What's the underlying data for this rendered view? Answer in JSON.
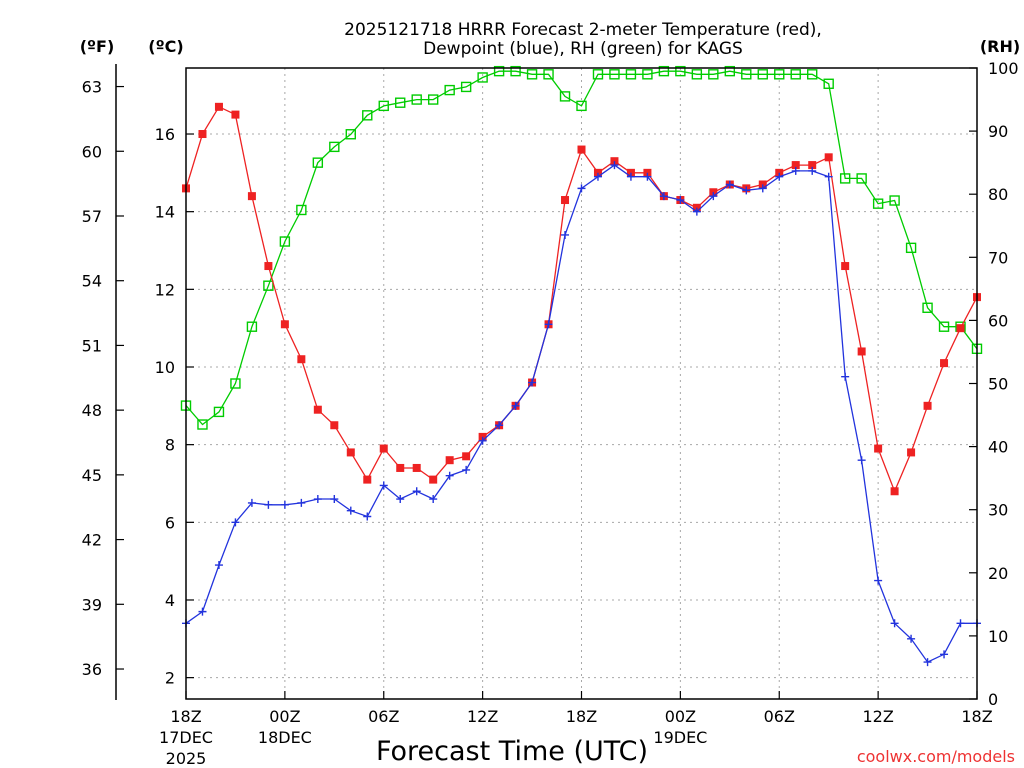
{
  "chart_data": {
    "type": "line",
    "title_line1": "2025121718 HRRR Forecast 2-meter Temperature (red),",
    "title_line2": "Dewpoint (blue), RH (green) for KAGS",
    "xlabel": "Forecast Time (UTC)",
    "credit": "coolwx.com/models",
    "unit_labels": {
      "fahrenheit": "(ºF)",
      "celsius": "(ºC)",
      "rh": "(RH)"
    },
    "colors": {
      "temperature": "#ee2222",
      "dewpoint": "#2233dd",
      "rh": "#00cc00",
      "grid": "#a8a8a8"
    },
    "x": {
      "range": [
        0,
        48
      ],
      "grid_hours": [
        6,
        12,
        18,
        24,
        30,
        36,
        42
      ]
    },
    "x_ticks": [
      {
        "hour": 0,
        "line1": "18Z",
        "line2": "17DEC",
        "line3": "2025"
      },
      {
        "hour": 6,
        "line1": "00Z",
        "line2": "18DEC",
        "line3": ""
      },
      {
        "hour": 12,
        "line1": "06Z",
        "line2": "",
        "line3": ""
      },
      {
        "hour": 18,
        "line1": "12Z",
        "line2": "",
        "line3": ""
      },
      {
        "hour": 24,
        "line1": "18Z",
        "line2": "",
        "line3": ""
      },
      {
        "hour": 30,
        "line1": "00Z",
        "line2": "19DEC",
        "line3": ""
      },
      {
        "hour": 36,
        "line1": "06Z",
        "line2": "",
        "line3": ""
      },
      {
        "hour": 42,
        "line1": "12Z",
        "line2": "",
        "line3": ""
      },
      {
        "hour": 48,
        "line1": "18Z",
        "line2": "",
        "line3": ""
      }
    ],
    "celsius_axis": {
      "range": [
        1.45,
        17.7
      ],
      "ticks": [
        "2",
        "4",
        "6",
        "8",
        "10",
        "12",
        "14",
        "16"
      ]
    },
    "fahrenheit_axis": {
      "ticks": [
        "36",
        "39",
        "42",
        "45",
        "48",
        "51",
        "54",
        "57",
        "60",
        "63"
      ]
    },
    "rh_axis": {
      "range": [
        0,
        100
      ],
      "ticks": [
        "0",
        "10",
        "20",
        "30",
        "40",
        "50",
        "60",
        "70",
        "80",
        "90",
        "100"
      ]
    },
    "series": [
      {
        "name": "Temperature",
        "units": "C",
        "values": [
          14.6,
          16.0,
          16.7,
          16.5,
          14.4,
          12.6,
          11.1,
          10.2,
          8.9,
          8.5,
          7.8,
          7.1,
          7.9,
          7.4,
          7.4,
          7.1,
          7.6,
          7.7,
          8.2,
          8.5,
          9.0,
          9.6,
          11.1,
          14.3,
          15.6,
          15.0,
          15.3,
          15.0,
          15.0,
          14.4,
          14.3,
          14.1,
          14.5,
          14.7,
          14.6,
          14.7,
          15.0,
          15.2,
          15.2,
          15.4,
          12.6,
          10.4,
          7.9,
          6.8,
          7.8,
          9.0,
          10.1,
          11.0,
          11.8
        ]
      },
      {
        "name": "Dewpoint",
        "units": "C",
        "values": [
          3.4,
          3.7,
          4.9,
          6.0,
          6.5,
          6.45,
          6.45,
          6.5,
          6.6,
          6.6,
          6.3,
          6.15,
          6.95,
          6.6,
          6.8,
          6.6,
          7.2,
          7.35,
          8.1,
          8.5,
          9.0,
          9.6,
          11.1,
          13.4,
          14.6,
          14.9,
          15.2,
          14.9,
          14.9,
          14.4,
          14.3,
          14.0,
          14.4,
          14.7,
          14.55,
          14.6,
          14.9,
          15.05,
          15.05,
          14.9,
          9.75,
          7.6,
          4.5,
          3.4,
          3.0,
          2.4,
          2.6,
          3.4,
          3.4
        ]
      },
      {
        "name": "RH",
        "units": "%",
        "values": [
          46.5,
          43.5,
          45.5,
          50,
          59,
          65.5,
          72.5,
          77.5,
          85,
          87.5,
          89.5,
          92.5,
          94,
          94.5,
          95,
          95,
          96.5,
          97,
          98.5,
          99.5,
          99.5,
          99,
          99,
          95.5,
          94,
          99,
          99,
          99,
          99,
          99.5,
          99.5,
          99,
          99,
          99.5,
          99,
          99,
          99,
          99,
          99,
          97.5,
          82.5,
          82.5,
          78.5,
          79,
          71.5,
          62,
          59,
          59,
          55.5
        ]
      }
    ]
  }
}
